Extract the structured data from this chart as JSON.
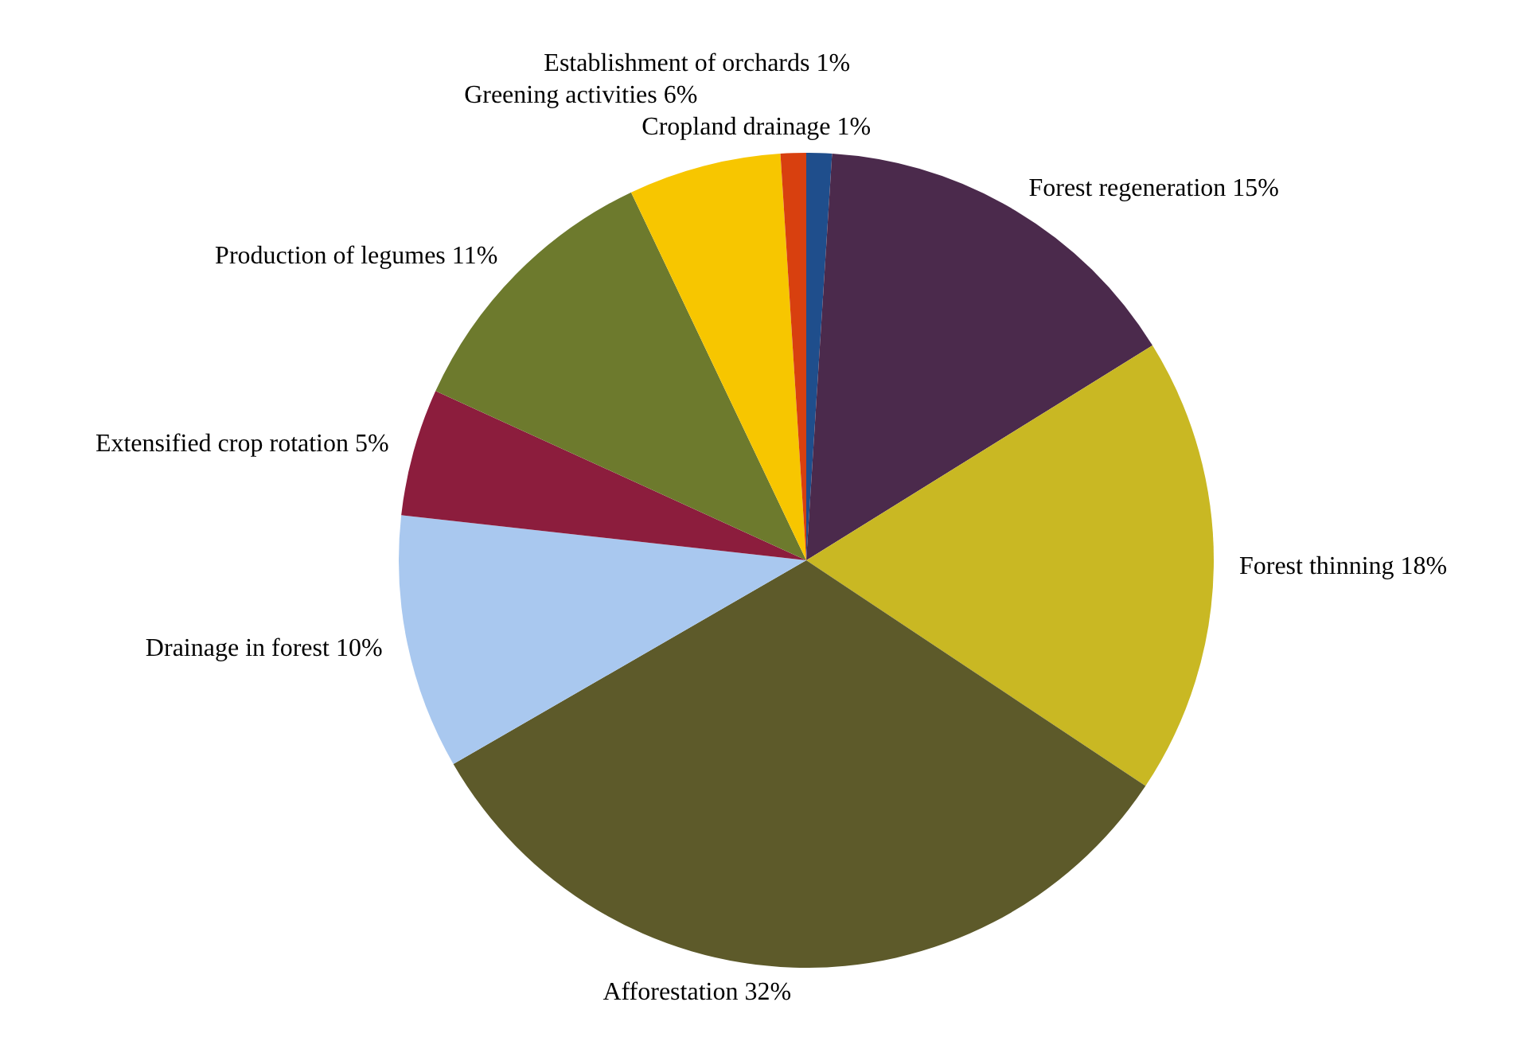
{
  "chart_data": {
    "type": "pie",
    "categories": [
      "Cropland drainage",
      "Forest regeneration",
      "Forest thinning",
      "Afforestation",
      "Drainage in forest",
      "Extensified crop rotation",
      "Production of legumes",
      "Greening activities",
      "Establishment of orchards"
    ],
    "values": [
      1,
      15,
      18,
      32,
      10,
      5,
      11,
      6,
      1
    ],
    "value_labels": [
      "1%",
      "15%",
      "18%",
      "32%",
      "10%",
      "5%",
      "11%",
      "6%",
      "1%"
    ],
    "colors": [
      "#1f4e8c",
      "#4b2a4c",
      "#c9b823",
      "#5d5a2a",
      "#a9c8ef",
      "#8c1d3d",
      "#6d7a2d",
      "#f7c600",
      "#d8400f"
    ],
    "legend": false
  }
}
